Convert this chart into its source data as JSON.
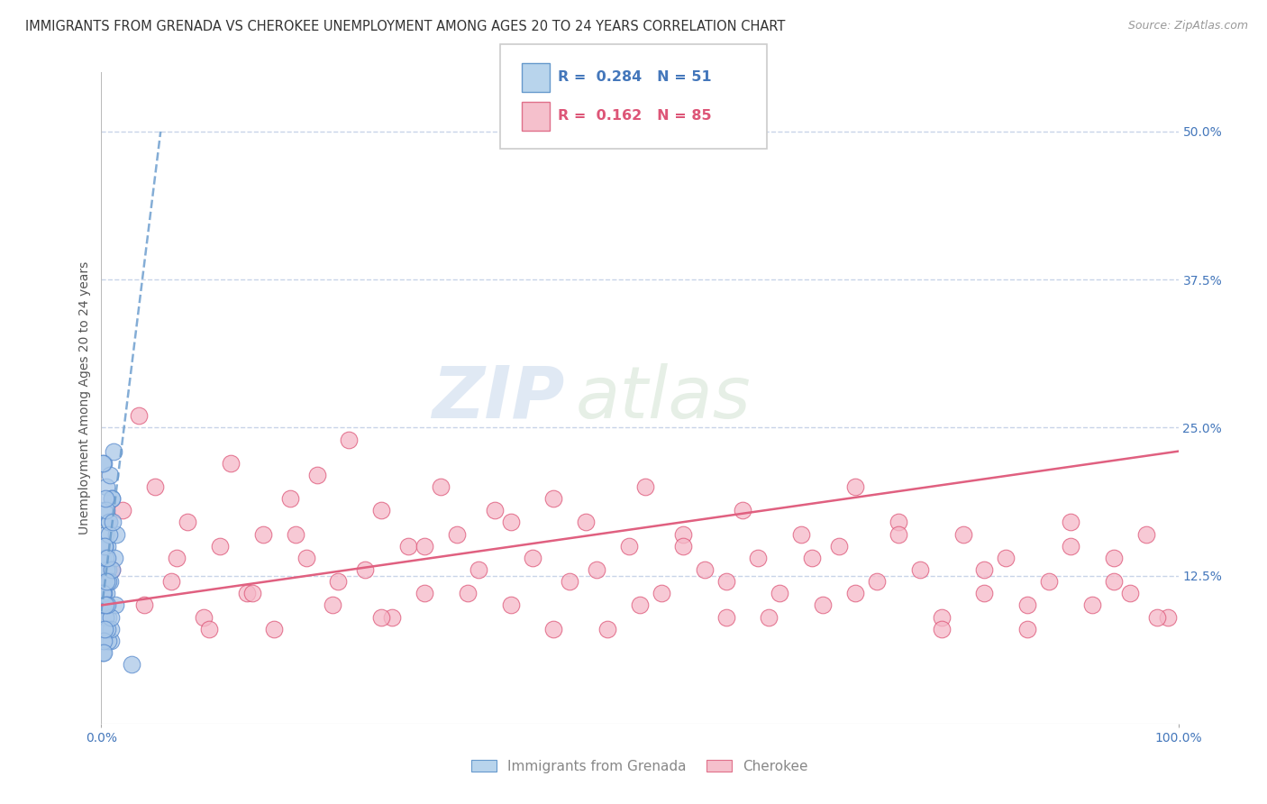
{
  "title": "IMMIGRANTS FROM GRENADA VS CHEROKEE UNEMPLOYMENT AMONG AGES 20 TO 24 YEARS CORRELATION CHART",
  "source": "Source: ZipAtlas.com",
  "ylabel": "Unemployment Among Ages 20 to 24 years",
  "xlim": [
    0,
    100
  ],
  "ylim": [
    0,
    55
  ],
  "yticks": [
    12.5,
    25.0,
    37.5,
    50.0
  ],
  "ytick_labels": [
    "12.5%",
    "25.0%",
    "37.5%",
    "50.0%"
  ],
  "xtick_labels": [
    "0.0%",
    "100.0%"
  ],
  "legend_entries": [
    {
      "label": "Immigrants from Grenada",
      "R": "0.284",
      "N": "51",
      "fc": "#b8d4ec",
      "ec": "#6699cc"
    },
    {
      "label": "Cherokee",
      "R": "0.162",
      "N": "85",
      "fc": "#f5c0cc",
      "ec": "#e0708a"
    }
  ],
  "watermark_zip": "ZIP",
  "watermark_atlas": "atlas",
  "background_color": "#ffffff",
  "grid_color": "#c8d4e8",
  "title_color": "#333333",
  "source_color": "#999999",
  "ylabel_color": "#555555",
  "ytick_color": "#4477bb",
  "xtick_color": "#4477bb",
  "blue_color": "#5588cc",
  "blue_fc": "#aac8e8",
  "pink_color": "#dd5577",
  "pink_fc": "#f5b8c8",
  "blue_trend_color": "#6699cc",
  "pink_trend_color": "#e06080",
  "blue_scatter_x": [
    0.1,
    0.15,
    0.2,
    0.25,
    0.3,
    0.35,
    0.4,
    0.45,
    0.5,
    0.55,
    0.6,
    0.65,
    0.7,
    0.8,
    0.9,
    1.0,
    1.1,
    1.2,
    1.3,
    1.4,
    0.1,
    0.2,
    0.3,
    0.4,
    0.5,
    0.6,
    0.7,
    0.8,
    0.9,
    1.0,
    0.15,
    0.25,
    0.35,
    0.45,
    0.55,
    0.65,
    0.75,
    0.85,
    0.95,
    1.05,
    0.12,
    0.22,
    0.32,
    0.42,
    0.52,
    2.8,
    0.18,
    0.28,
    0.38,
    0.48,
    0.58
  ],
  "blue_scatter_y": [
    10.0,
    14.0,
    18.0,
    22.0,
    8.0,
    12.0,
    16.0,
    20.0,
    11.0,
    15.0,
    9.0,
    13.0,
    17.0,
    21.0,
    7.0,
    19.0,
    23.0,
    14.0,
    10.0,
    16.0,
    6.0,
    11.0,
    15.0,
    9.0,
    13.0,
    7.0,
    17.0,
    12.0,
    8.0,
    19.0,
    22.0,
    10.0,
    14.0,
    18.0,
    8.0,
    12.0,
    16.0,
    9.0,
    13.0,
    17.0,
    11.0,
    7.0,
    15.0,
    19.0,
    10.0,
    5.0,
    6.0,
    8.0,
    10.0,
    12.0,
    14.0
  ],
  "pink_scatter_x": [
    1.0,
    2.0,
    3.5,
    5.0,
    6.5,
    8.0,
    9.5,
    11.0,
    12.0,
    13.5,
    15.0,
    16.0,
    17.5,
    19.0,
    20.0,
    21.5,
    23.0,
    24.5,
    26.0,
    27.0,
    28.5,
    30.0,
    31.5,
    33.0,
    35.0,
    36.5,
    38.0,
    40.0,
    42.0,
    43.5,
    45.0,
    47.0,
    49.0,
    50.5,
    52.0,
    54.0,
    56.0,
    58.0,
    59.5,
    61.0,
    63.0,
    65.0,
    67.0,
    68.5,
    70.0,
    72.0,
    74.0,
    76.0,
    78.0,
    80.0,
    82.0,
    84.0,
    86.0,
    88.0,
    90.0,
    92.0,
    94.0,
    95.5,
    97.0,
    99.0,
    4.0,
    7.0,
    10.0,
    14.0,
    18.0,
    22.0,
    26.0,
    30.0,
    34.0,
    38.0,
    42.0,
    46.0,
    50.0,
    54.0,
    58.0,
    62.0,
    66.0,
    70.0,
    74.0,
    78.0,
    82.0,
    86.0,
    90.0,
    94.0,
    98.0
  ],
  "pink_scatter_y": [
    13.0,
    18.0,
    26.0,
    20.0,
    12.0,
    17.0,
    9.0,
    15.0,
    22.0,
    11.0,
    16.0,
    8.0,
    19.0,
    14.0,
    21.0,
    10.0,
    24.0,
    13.0,
    18.0,
    9.0,
    15.0,
    11.0,
    20.0,
    16.0,
    13.0,
    18.0,
    10.0,
    14.0,
    19.0,
    12.0,
    17.0,
    8.0,
    15.0,
    20.0,
    11.0,
    16.0,
    13.0,
    9.0,
    18.0,
    14.0,
    11.0,
    16.0,
    10.0,
    15.0,
    20.0,
    12.0,
    17.0,
    13.0,
    9.0,
    16.0,
    11.0,
    14.0,
    8.0,
    12.0,
    17.0,
    10.0,
    14.0,
    11.0,
    16.0,
    9.0,
    10.0,
    14.0,
    8.0,
    11.0,
    16.0,
    12.0,
    9.0,
    15.0,
    11.0,
    17.0,
    8.0,
    13.0,
    10.0,
    15.0,
    12.0,
    9.0,
    14.0,
    11.0,
    16.0,
    8.0,
    13.0,
    10.0,
    15.0,
    12.0,
    9.0
  ],
  "blue_trend_x": [
    0,
    5.5
  ],
  "blue_trend_y": [
    9.5,
    50.0
  ],
  "pink_trend_x": [
    0,
    100
  ],
  "pink_trend_y": [
    10.0,
    23.0
  ],
  "title_fontsize": 10.5,
  "source_fontsize": 9,
  "ylabel_fontsize": 10,
  "tick_fontsize": 10,
  "legend_fontsize": 11.5
}
